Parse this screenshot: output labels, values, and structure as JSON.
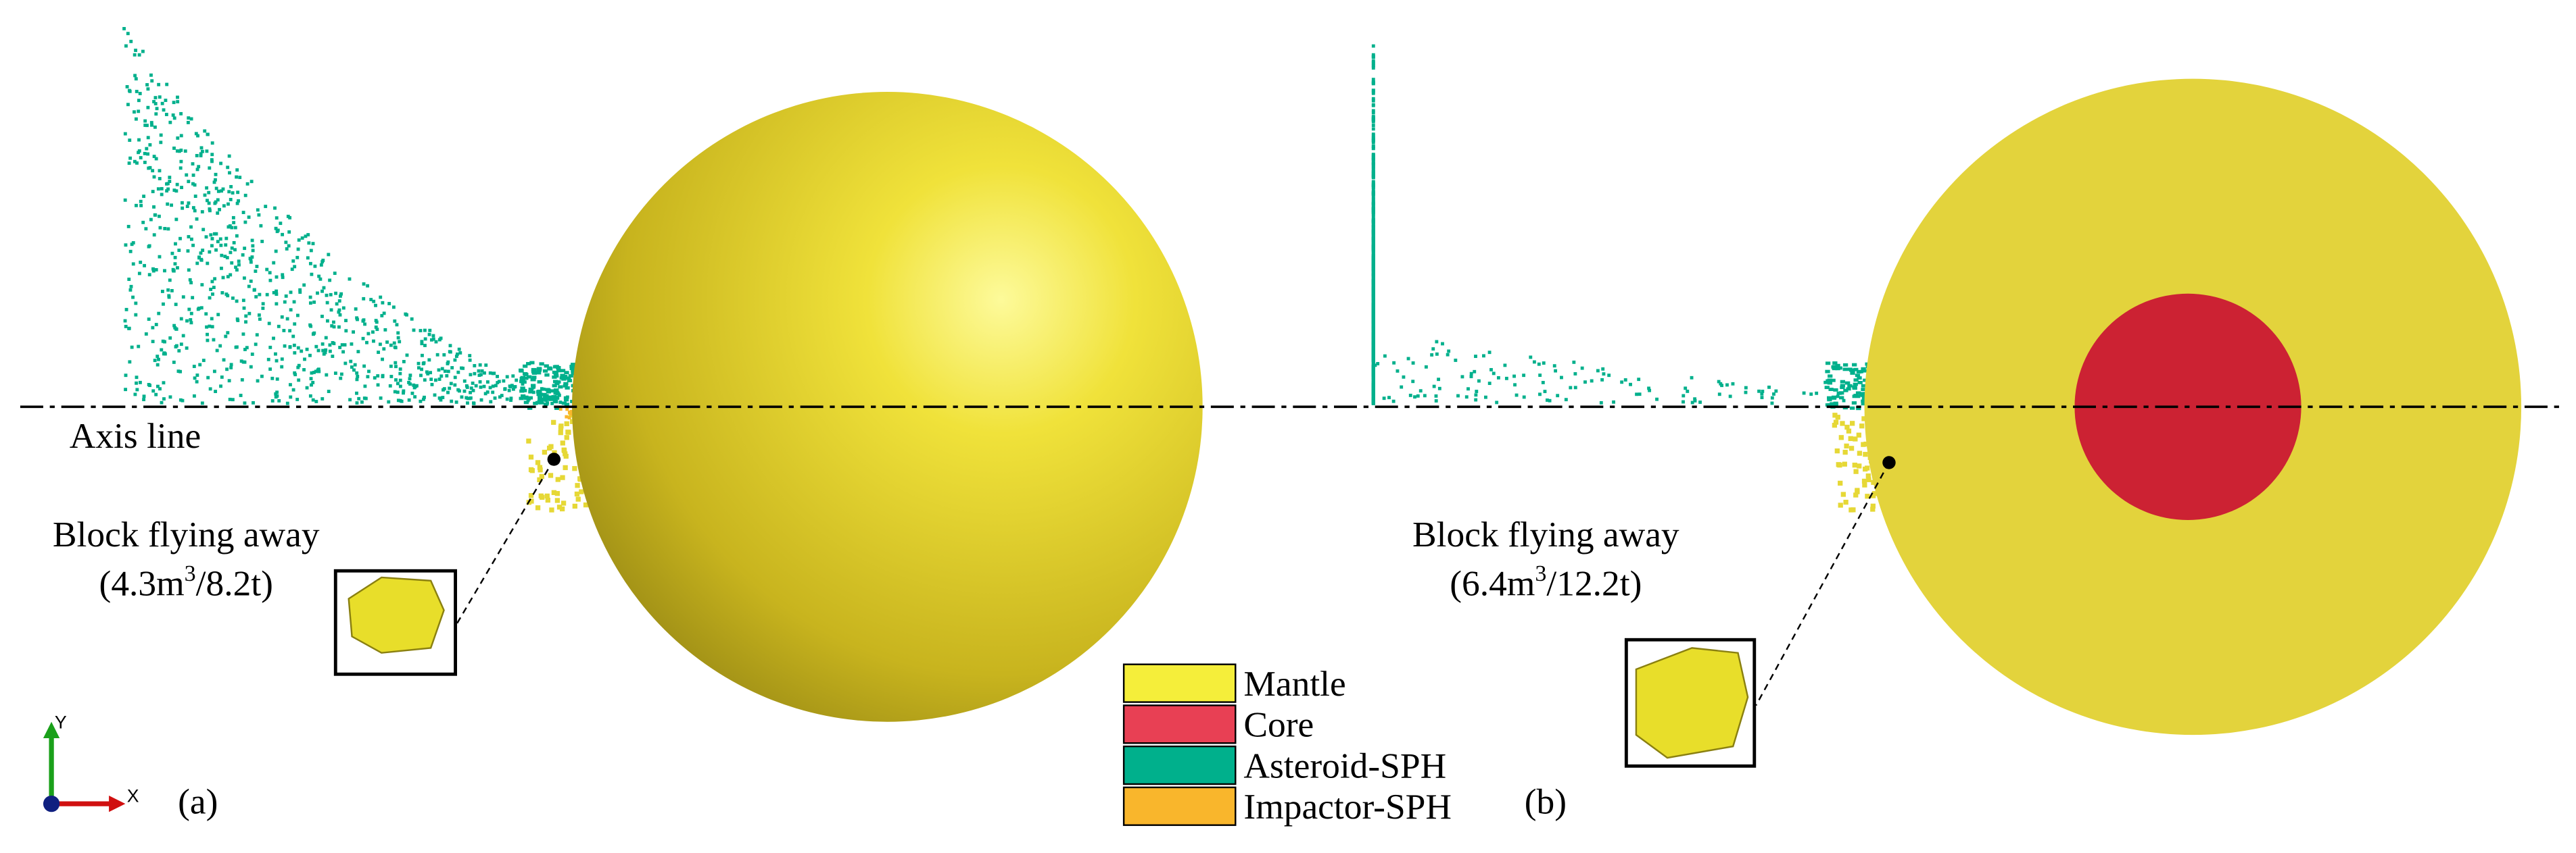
{
  "axis_line": "Axis line",
  "panels": [
    {
      "label": "(a)",
      "annotation": {
        "title": "Block flying away",
        "volume_prefix": "(4.3m",
        "superscript": "3",
        "mass_suffix": "/8.2t)"
      }
    },
    {
      "label": "(b)",
      "annotation": {
        "title": "Block flying away",
        "volume_prefix": "(6.4m",
        "superscript": "3",
        "mass_suffix": "/12.2t)"
      }
    }
  ],
  "legend": [
    {
      "name": "Mantle",
      "color": "#f5ee3a"
    },
    {
      "name": "Core",
      "color": "#e84054"
    },
    {
      "name": "Asteroid-SPH",
      "color": "#00b08c"
    },
    {
      "name": "Impactor-SPH",
      "color": "#f9b62c"
    }
  ],
  "triad": {
    "y": "Y",
    "x": "X"
  }
}
